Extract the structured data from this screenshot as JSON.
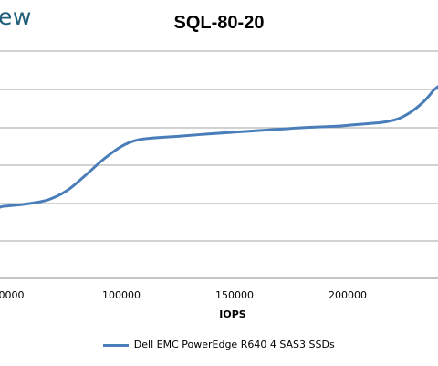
{
  "brand": "ew",
  "chart_data": {
    "type": "line",
    "title": "SQL-80-20",
    "xlabel": "IOPS",
    "ylabel": "",
    "xlim": [
      0,
      240000
    ],
    "x_ticks": [
      "100000",
      "150000",
      "200000"
    ],
    "x_tick_values": [
      100000,
      150000,
      200000
    ],
    "x_edge_tick": "00000",
    "grid": true,
    "legend": "bottom",
    "series": [
      {
        "name": "Dell EMC PowerEdge R640 4 SAS3 SSDs",
        "color": "#4a7ebb",
        "x": [
          48000,
          52000,
          60000,
          68000,
          76000,
          84000,
          92000,
          100000,
          107000,
          115000,
          125000,
          140000,
          155000,
          170000,
          180000,
          195000,
          205000,
          215000,
          222000,
          228000,
          234000,
          238000,
          240000
        ],
        "y": [
          0.0,
          0.02,
          0.08,
          0.18,
          0.42,
          0.82,
          1.25,
          1.6,
          1.77,
          1.83,
          1.87,
          1.94,
          2.0,
          2.06,
          2.1,
          2.14,
          2.19,
          2.24,
          2.33,
          2.52,
          2.82,
          3.1,
          3.2
        ]
      }
    ]
  }
}
